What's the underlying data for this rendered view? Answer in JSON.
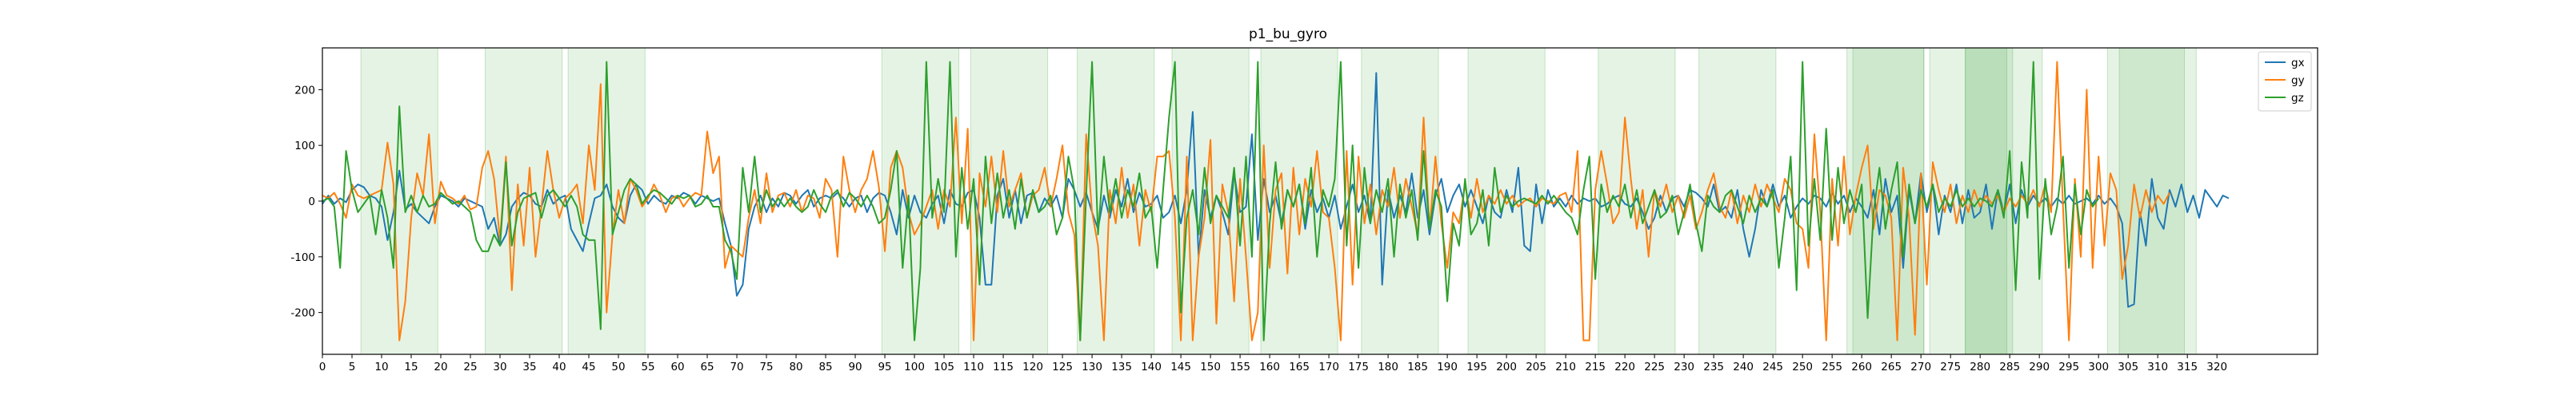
{
  "chart_data": {
    "type": "line",
    "title": "p1_bu_gyro",
    "xlabel": "",
    "ylabel": "",
    "xlim": [
      0,
      337
    ],
    "ylim": [
      -275,
      275
    ],
    "x_ticks": [
      0,
      5,
      10,
      15,
      20,
      25,
      30,
      35,
      40,
      45,
      50,
      55,
      60,
      65,
      70,
      75,
      80,
      85,
      90,
      95,
      100,
      105,
      110,
      115,
      120,
      125,
      130,
      135,
      140,
      145,
      150,
      155,
      160,
      165,
      170,
      175,
      180,
      185,
      190,
      195,
      200,
      205,
      210,
      215,
      220,
      225,
      230,
      235,
      240,
      245,
      250,
      255,
      260,
      265,
      270,
      275,
      280,
      285,
      290,
      295,
      300,
      305,
      310,
      315,
      320
    ],
    "y_ticks": [
      -200,
      -100,
      0,
      100,
      200
    ],
    "grid": false,
    "legend_position": "top-right",
    "colors": {
      "gx": "#1f77b4",
      "gy": "#ff7f0e",
      "gz": "#2ca02c",
      "span": "#2ca02c"
    },
    "shaded_spans": [
      [
        6.5,
        19.5
      ],
      [
        27.5,
        40.5
      ],
      [
        41.5,
        54.5
      ],
      [
        94.5,
        107.5
      ],
      [
        109.5,
        122.5
      ],
      [
        127.5,
        140.5
      ],
      [
        143.5,
        156.5
      ],
      [
        158.5,
        171.5
      ],
      [
        175.5,
        188.5
      ],
      [
        193.5,
        206.5
      ],
      [
        215.5,
        228.5
      ],
      [
        232.5,
        245.5
      ],
      [
        257.5,
        270.5
      ],
      [
        258.5,
        270.5
      ],
      [
        271.5,
        284.5
      ],
      [
        277.5,
        285.5
      ],
      [
        277.5,
        290.5
      ],
      [
        301.5,
        314.5
      ],
      [
        303.5,
        316.5
      ]
    ],
    "series": [
      {
        "name": "gx",
        "values": [
          -5,
          10,
          -5,
          5,
          -2,
          20,
          30,
          25,
          10,
          5,
          -10,
          -70,
          -20,
          55,
          -15,
          -5,
          -20,
          -30,
          -40,
          -10,
          10,
          5,
          0,
          -10,
          5,
          0,
          -5,
          -10,
          -50,
          -30,
          -80,
          -60,
          -10,
          5,
          15,
          10,
          -5,
          -10,
          20,
          -5,
          5,
          10,
          -50,
          -70,
          -90,
          -40,
          5,
          10,
          30,
          -10,
          -30,
          -40,
          10,
          30,
          20,
          -5,
          10,
          0,
          -5,
          10,
          5,
          15,
          10,
          -5,
          10,
          5,
          0,
          5,
          -40,
          -80,
          -170,
          -150,
          -50,
          -10,
          10,
          -20,
          5,
          -10,
          15,
          10,
          -5,
          10,
          20,
          -10,
          5,
          10,
          5,
          15,
          5,
          -10,
          5,
          10,
          -20,
          5,
          15,
          10,
          -20,
          -60,
          20,
          -30,
          10,
          -20,
          -30,
          -5,
          10,
          -40,
          20,
          -5,
          -10,
          15,
          20,
          -30,
          -150,
          -150,
          10,
          40,
          -30,
          20,
          -40,
          10,
          15,
          -20,
          5,
          -10,
          10,
          -30,
          40,
          20,
          -10,
          15,
          -20,
          -50,
          10,
          -30,
          20,
          -10,
          40,
          -20,
          15,
          -10,
          -5,
          10,
          -30,
          -20,
          10,
          -40,
          20,
          160,
          -100,
          20,
          -30,
          10,
          -20,
          -60,
          50,
          -20,
          -10,
          120,
          -70,
          40,
          -20,
          10,
          -40,
          20,
          -10,
          30,
          -50,
          20,
          -20,
          5,
          -30,
          10,
          -50,
          -10,
          30,
          -20,
          10,
          -40,
          230,
          -150,
          20,
          -30,
          10,
          -20,
          50,
          -30,
          20,
          -60,
          10,
          40,
          -20,
          10,
          30,
          -10,
          20,
          -10,
          -40,
          10,
          -20,
          -30,
          20,
          -20,
          60,
          -80,
          -90,
          30,
          -40,
          20,
          -10,
          5,
          -10,
          10,
          -5,
          5,
          0,
          5,
          -10,
          -5,
          5,
          10,
          -5,
          -10,
          5,
          -20,
          -50,
          -30,
          10,
          -20,
          5,
          10,
          -10,
          20,
          15,
          5,
          -10,
          30,
          -20,
          -10,
          -30,
          20,
          -50,
          -100,
          -50,
          20,
          -10,
          30,
          -10,
          10,
          -30,
          -10,
          5,
          -5,
          10,
          5,
          -10,
          15,
          -5,
          10,
          -20,
          5,
          -10,
          -30,
          20,
          -60,
          40,
          -20,
          10,
          -120,
          20,
          -40,
          50,
          -20,
          30,
          -60,
          10,
          -20,
          30,
          -40,
          20,
          -30,
          -20,
          30,
          -50,
          20,
          -20,
          30,
          -40,
          20,
          -10,
          10,
          -5,
          5,
          -10,
          5,
          -5,
          10,
          -5,
          0,
          5,
          -5,
          10,
          -5,
          5,
          -10,
          -40,
          -190,
          -185,
          -20,
          -80,
          40,
          -30,
          -50,
          20,
          -10,
          30,
          -20,
          10,
          -30,
          20,
          5,
          -10,
          10,
          5
        ]
      },
      {
        "name": "gy",
        "values": [
          10,
          5,
          15,
          -5,
          -30,
          30,
          10,
          5,
          10,
          15,
          20,
          105,
          30,
          -250,
          -180,
          -30,
          50,
          10,
          120,
          -40,
          35,
          10,
          5,
          -5,
          10,
          -15,
          -10,
          60,
          90,
          40,
          -70,
          80,
          -160,
          30,
          -80,
          60,
          -100,
          -10,
          90,
          20,
          -30,
          5,
          15,
          30,
          -40,
          100,
          20,
          210,
          -200,
          -60,
          20,
          -40,
          40,
          20,
          -10,
          5,
          30,
          10,
          -20,
          5,
          10,
          -10,
          5,
          15,
          10,
          125,
          50,
          80,
          -120,
          -80,
          -90,
          -100,
          -30,
          20,
          -40,
          50,
          -20,
          10,
          15,
          -10,
          20,
          -20,
          10,
          5,
          -30,
          40,
          20,
          -100,
          80,
          20,
          -20,
          20,
          40,
          90,
          25,
          -90,
          60,
          90,
          60,
          -20,
          -60,
          -40,
          -10,
          20,
          -50,
          20,
          -10,
          150,
          -40,
          130,
          -250,
          50,
          -10,
          80,
          -20,
          90,
          -10,
          20,
          50,
          -30,
          10,
          20,
          60,
          -10,
          40,
          100,
          -20,
          -60,
          -250,
          120,
          -20,
          -80,
          -250,
          20,
          -40,
          60,
          -30,
          30,
          -80,
          20,
          -20,
          80,
          80,
          90,
          -30,
          -250,
          80,
          -250,
          -100,
          -30,
          110,
          -220,
          30,
          -20,
          -180,
          40,
          -100,
          -250,
          -200,
          100,
          -120,
          20,
          50,
          -130,
          60,
          -60,
          40,
          -10,
          90,
          -20,
          -30,
          -120,
          -250,
          90,
          -150,
          80,
          -40,
          30,
          -60,
          20,
          -10,
          60,
          -30,
          40,
          -10,
          -60,
          150,
          -50,
          80,
          -40,
          -120,
          -20,
          -40,
          30,
          -30,
          40,
          -20,
          10,
          -5,
          20,
          -5,
          10,
          -10,
          0,
          5,
          -10,
          5,
          0,
          -5,
          10,
          15,
          -20,
          90,
          -250,
          -250,
          20,
          90,
          30,
          -40,
          -20,
          150,
          40,
          -50,
          20,
          -100,
          20,
          -10,
          30,
          -20,
          10,
          -30,
          10,
          -50,
          -20,
          20,
          50,
          -10,
          -30,
          20,
          -40,
          10,
          -20,
          30,
          -10,
          30,
          5,
          -20,
          40,
          20,
          -40,
          -50,
          -120,
          120,
          -20,
          -250,
          40,
          -80,
          80,
          -60,
          10,
          60,
          100,
          -50,
          20,
          10,
          -30,
          -250,
          60,
          -30,
          -240,
          50,
          -150,
          70,
          20,
          -20,
          30,
          -40,
          10,
          -20,
          20,
          -10,
          10,
          -5,
          10,
          -20,
          5,
          -10,
          10,
          -5,
          20,
          -10,
          30,
          -20,
          250,
          -10,
          -250,
          40,
          -100,
          200,
          -120,
          80,
          -80,
          50,
          20,
          -140,
          -80,
          30,
          -30,
          20,
          -20,
          10,
          -5,
          15
        ]
      },
      {
        "name": "gz",
        "values": [
          0,
          5,
          -10,
          -120,
          90,
          20,
          -20,
          -5,
          10,
          -60,
          20,
          -30,
          -120,
          170,
          -20,
          10,
          -20,
          10,
          -10,
          -5,
          15,
          5,
          -5,
          0,
          -10,
          -20,
          -70,
          -90,
          -90,
          -60,
          -80,
          70,
          -80,
          -20,
          5,
          10,
          15,
          -30,
          10,
          20,
          5,
          -10,
          10,
          -10,
          -60,
          -70,
          -70,
          -230,
          250,
          -60,
          -20,
          20,
          40,
          30,
          -5,
          10,
          20,
          15,
          5,
          -5,
          10,
          5,
          10,
          -10,
          -5,
          10,
          -10,
          -10,
          -70,
          -90,
          -140,
          60,
          -20,
          80,
          -20,
          20,
          -10,
          5,
          -10,
          5,
          -10,
          -20,
          -10,
          20,
          -5,
          -20,
          10,
          20,
          -10,
          15,
          5,
          -10,
          10,
          -10,
          -40,
          -30,
          20,
          90,
          -120,
          10,
          -250,
          -120,
          250,
          -30,
          40,
          -20,
          250,
          -100,
          60,
          -50,
          40,
          -150,
          80,
          -40,
          50,
          -30,
          20,
          -50,
          40,
          -30,
          20,
          -20,
          -10,
          10,
          -60,
          -30,
          80,
          20,
          -250,
          10,
          250,
          -60,
          80,
          -20,
          40,
          -30,
          20,
          -10,
          50,
          -30,
          -10,
          -120,
          20,
          150,
          250,
          -200,
          -30,
          20,
          -60,
          60,
          -40,
          10,
          -10,
          -30,
          60,
          -80,
          80,
          -100,
          250,
          -250,
          -40,
          70,
          -50,
          20,
          -10,
          30,
          -40,
          60,
          -100,
          20,
          -10,
          40,
          250,
          -80,
          100,
          -120,
          60,
          -40,
          20,
          -20,
          40,
          -100,
          30,
          -30,
          20,
          -70,
          90,
          -50,
          20,
          -10,
          -180,
          -40,
          -80,
          40,
          -60,
          -40,
          20,
          -80,
          60,
          -20,
          10,
          -10,
          0,
          5,
          0,
          -5,
          10,
          -5,
          10,
          -5,
          -20,
          -30,
          -60,
          20,
          80,
          -140,
          30,
          -20,
          10,
          -10,
          30,
          -30,
          20,
          -40,
          -10,
          20,
          -30,
          -20,
          10,
          -60,
          -20,
          30,
          -40,
          -90,
          10,
          -10,
          -20,
          10,
          20,
          -10,
          -40,
          10,
          -20,
          5,
          -10,
          20,
          -120,
          -30,
          80,
          -160,
          250,
          -80,
          40,
          -70,
          130,
          -70,
          60,
          -40,
          20,
          -20,
          30,
          -210,
          -20,
          60,
          -50,
          20,
          70,
          -100,
          30,
          -40,
          20,
          -10,
          30,
          -20,
          5,
          -10,
          20,
          -10,
          5,
          -10,
          5,
          0,
          -10,
          20,
          -30,
          90,
          -160,
          70,
          -30,
          250,
          -140,
          40,
          -60,
          -10,
          80,
          -120,
          30,
          -60,
          20,
          -10,
          5
        ]
      }
    ]
  }
}
